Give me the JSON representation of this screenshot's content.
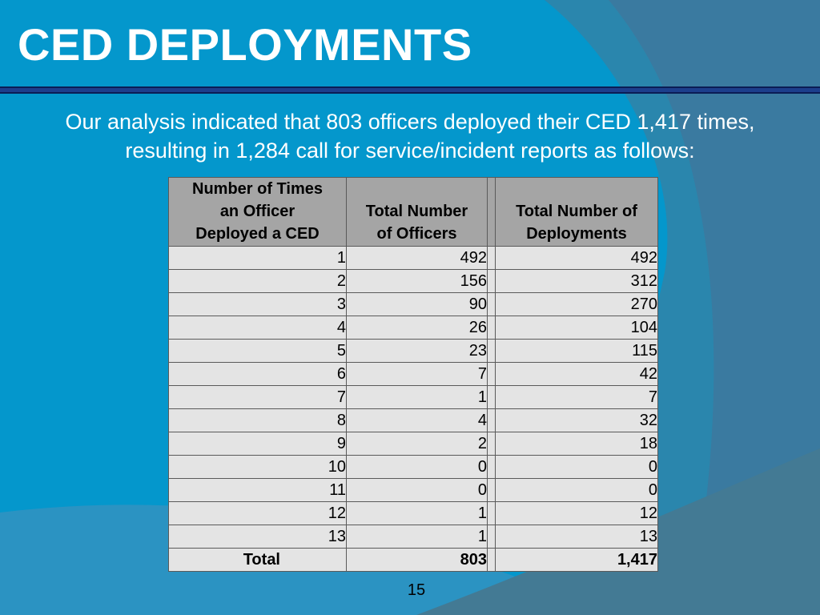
{
  "slide": {
    "title": "CED DEPLOYMENTS",
    "intro_line1": "Our analysis indicated that 803 officers deployed their CED 1,417 times,",
    "intro_line2": "resulting in 1,284 call for service/incident reports as follows:",
    "page_number": "15"
  },
  "colors": {
    "background": "#0497cc",
    "title_rule": "#1c3f8c",
    "header_cell": "#a5a5a5",
    "body_cell": "#e4e4e4"
  },
  "table": {
    "headers": {
      "times_line1": "Number of Times",
      "times_line2": "an Officer",
      "times_line3": "Deployed a CED",
      "officers_line1": "Total Number",
      "officers_line2": "of Officers",
      "deploy_line1": "Total Number of",
      "deploy_line2": "Deployments"
    },
    "rows": [
      {
        "times": "1",
        "officers": "492",
        "deployments": "492"
      },
      {
        "times": "2",
        "officers": "156",
        "deployments": "312"
      },
      {
        "times": "3",
        "officers": "90",
        "deployments": "270"
      },
      {
        "times": "4",
        "officers": "26",
        "deployments": "104"
      },
      {
        "times": "5",
        "officers": "23",
        "deployments": "115"
      },
      {
        "times": "6",
        "officers": "7",
        "deployments": "42"
      },
      {
        "times": "7",
        "officers": "1",
        "deployments": "7"
      },
      {
        "times": "8",
        "officers": "4",
        "deployments": "32"
      },
      {
        "times": "9",
        "officers": "2",
        "deployments": "18"
      },
      {
        "times": "10",
        "officers": "0",
        "deployments": "0"
      },
      {
        "times": "11",
        "officers": "0",
        "deployments": "0"
      },
      {
        "times": "12",
        "officers": "1",
        "deployments": "12"
      },
      {
        "times": "13",
        "officers": "1",
        "deployments": "13"
      }
    ],
    "total": {
      "label": "Total",
      "officers": "803",
      "deployments": "1,417"
    }
  }
}
